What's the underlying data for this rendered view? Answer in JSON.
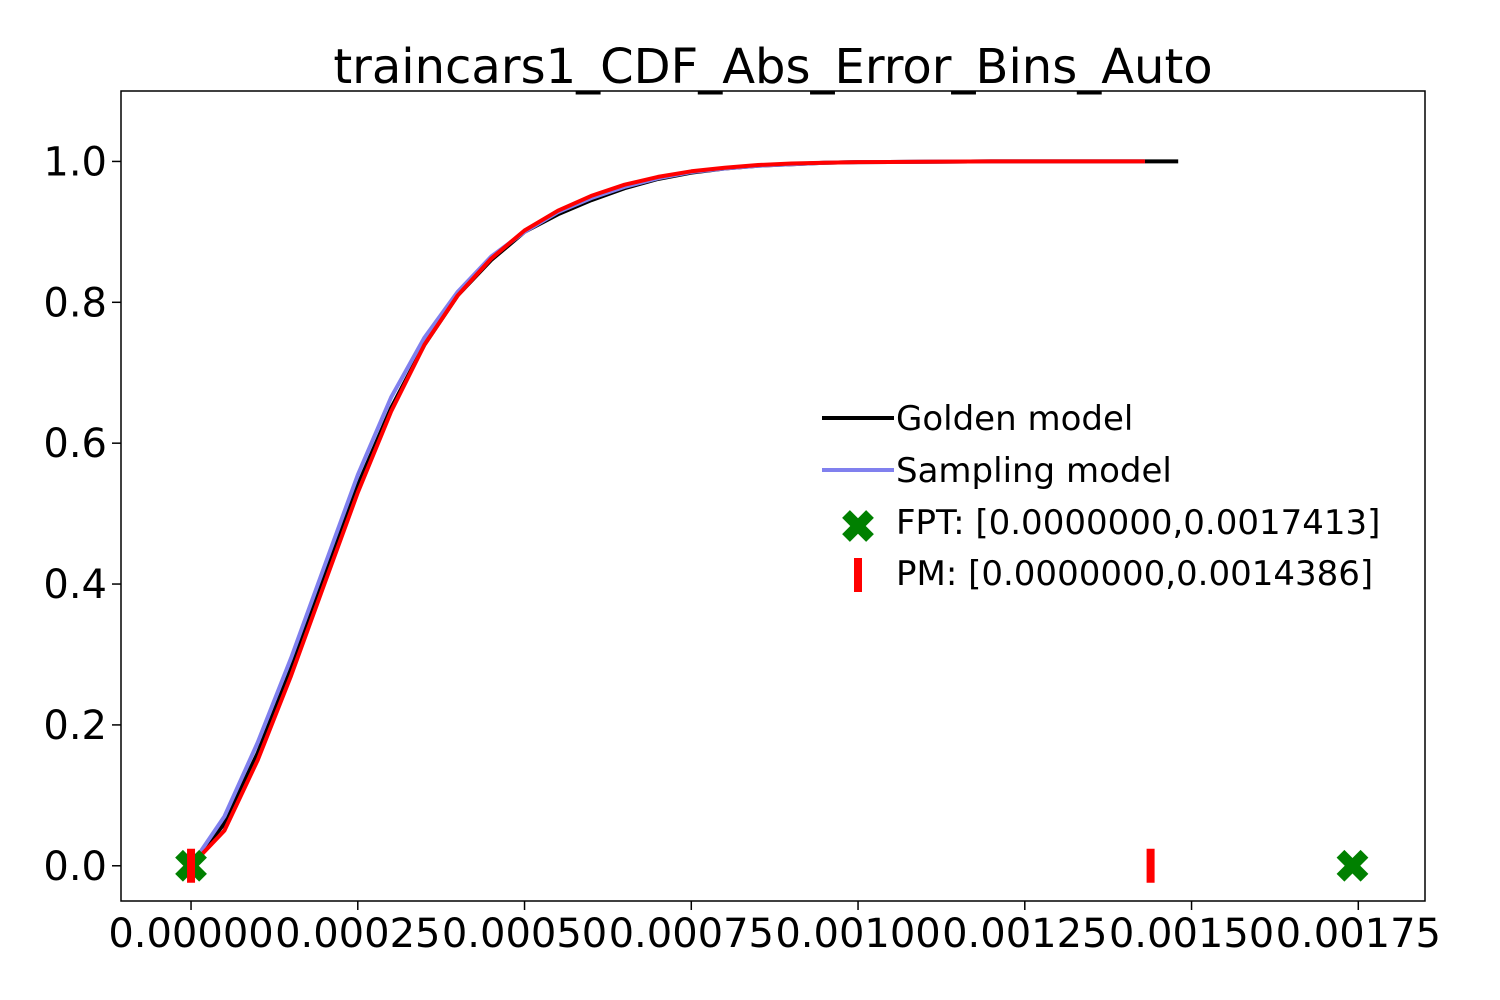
{
  "chart_data": {
    "type": "line",
    "title": "traincars1_CDF_Abs_Error_Bins_Auto",
    "xlabel": "",
    "ylabel": "",
    "xlim": [
      -0.000105,
      0.00185
    ],
    "ylim": [
      -0.05,
      1.1
    ],
    "grid": false,
    "legend_position": "center-right",
    "x_ticks": [
      {
        "value": 0.0,
        "label": "0.00000"
      },
      {
        "value": 0.00025,
        "label": "0.00025"
      },
      {
        "value": 0.0005,
        "label": "0.00050"
      },
      {
        "value": 0.00075,
        "label": "0.00075"
      },
      {
        "value": 0.001,
        "label": "0.00100"
      },
      {
        "value": 0.00125,
        "label": "0.00125"
      },
      {
        "value": 0.0015,
        "label": "0.00150"
      },
      {
        "value": 0.00175,
        "label": "0.00175"
      }
    ],
    "y_ticks": [
      {
        "value": 0.0,
        "label": "0.0"
      },
      {
        "value": 0.2,
        "label": "0.2"
      },
      {
        "value": 0.4,
        "label": "0.4"
      },
      {
        "value": 0.6,
        "label": "0.6"
      },
      {
        "value": 0.8,
        "label": "0.8"
      },
      {
        "value": 1.0,
        "label": "1.0"
      }
    ],
    "x": [
      0.0,
      5e-05,
      0.0001,
      0.00015,
      0.0002,
      0.00025,
      0.0003,
      0.00035,
      0.0004,
      0.00045,
      0.0005,
      0.00055,
      0.0006,
      0.00065,
      0.0007,
      0.00075,
      0.0008,
      0.00085,
      0.0009,
      0.00095,
      0.001,
      0.0011,
      0.0012,
      0.0013,
      0.0014,
      0.00143,
      0.00148
    ],
    "series": [
      {
        "name": "Golden model",
        "color": "#000000",
        "values": [
          0.0,
          0.06,
          0.16,
          0.28,
          0.41,
          0.54,
          0.65,
          0.74,
          0.81,
          0.86,
          0.9,
          0.925,
          0.945,
          0.962,
          0.975,
          0.984,
          0.99,
          0.994,
          0.996,
          0.998,
          0.999,
          0.9995,
          1.0,
          1.0,
          1.0,
          1.0,
          1.0
        ]
      },
      {
        "name": "Sampling model",
        "color": "#8080ee",
        "values": [
          0.0,
          0.07,
          0.175,
          0.295,
          0.425,
          0.555,
          0.665,
          0.75,
          0.815,
          0.865,
          0.9,
          0.928,
          0.948,
          0.964,
          0.976,
          0.985,
          0.99,
          0.994,
          0.996,
          0.998,
          0.999,
          0.9995,
          1.0,
          1.0,
          1.0,
          1.0,
          null
        ]
      },
      {
        "name": "",
        "color": "#ff0000",
        "values": [
          0.0,
          0.05,
          0.15,
          0.27,
          0.4,
          0.53,
          0.645,
          0.74,
          0.81,
          0.862,
          0.902,
          0.93,
          0.951,
          0.967,
          0.978,
          0.986,
          0.991,
          0.995,
          0.997,
          0.998,
          0.999,
          0.9995,
          1.0,
          1.0,
          1.0,
          1.0,
          null
        ]
      }
    ],
    "markers": [
      {
        "name": "FPT: [0.0000000,0.0017413]",
        "shape": "x",
        "color": "#008000",
        "x": [
          0.0,
          0.0017413
        ],
        "y": [
          0.0,
          0.0
        ]
      },
      {
        "name": "PM: [0.0000000,0.0014386]",
        "shape": "vline",
        "color": "#ff0000",
        "x": [
          0.0,
          0.0014386
        ],
        "y": [
          0.0,
          0.0
        ]
      }
    ],
    "legend": [
      {
        "label": "Golden model",
        "kind": "line",
        "color": "#000000"
      },
      {
        "label": "Sampling model",
        "kind": "line",
        "color": "#8080ee"
      },
      {
        "label": "FPT: [0.0000000,0.0017413]",
        "kind": "x",
        "color": "#008000"
      },
      {
        "label": "PM: [0.0000000,0.0014386]",
        "kind": "vline",
        "color": "#ff0000"
      }
    ]
  }
}
